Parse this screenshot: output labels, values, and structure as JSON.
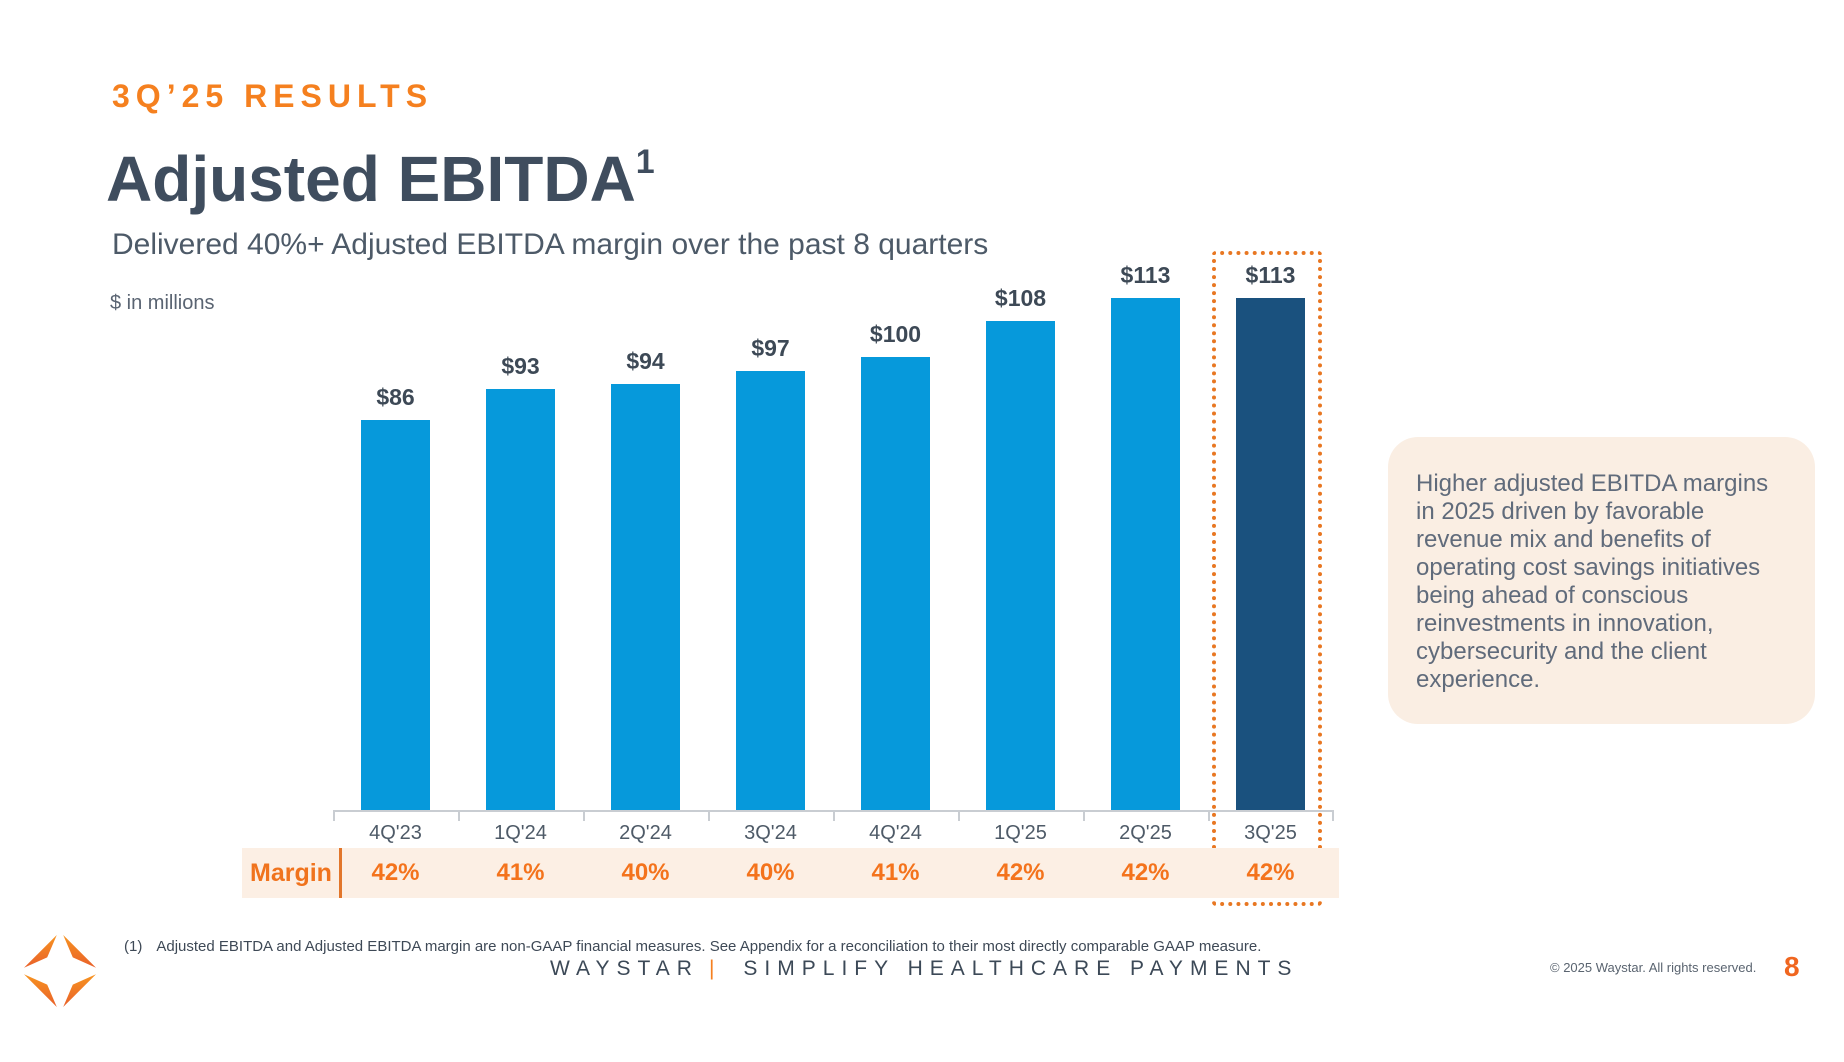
{
  "slide": {
    "eyebrow": "3Q’25 RESULTS",
    "title": "Adjusted EBITDA",
    "title_superscript": "1",
    "subtitle": "Delivered 40%+ Adjusted EBITDA margin over the past 8 quarters",
    "units_label": "$ in millions"
  },
  "chart_data": {
    "type": "bar",
    "title": "Adjusted EBITDA",
    "xlabel": "",
    "ylabel": "$ in millions",
    "categories": [
      "4Q'23",
      "1Q'24",
      "2Q'24",
      "3Q'24",
      "4Q'24",
      "1Q'25",
      "2Q'25",
      "3Q'25"
    ],
    "values": [
      86,
      93,
      94,
      97,
      100,
      108,
      113,
      113
    ],
    "value_labels": [
      "$86",
      "$93",
      "$94",
      "$97",
      "$100",
      "$108",
      "$113",
      "$113"
    ],
    "highlight_index": 7,
    "ylim": [
      0,
      126
    ],
    "grid": false,
    "legend": false,
    "margin_row": {
      "label": "Margin",
      "values": [
        "42%",
        "41%",
        "40%",
        "40%",
        "41%",
        "42%",
        "42%",
        "42%"
      ]
    },
    "colors": {
      "bar": "#0699DB",
      "highlight_bar": "#1A517E",
      "accent_orange": "#F5801F",
      "margin_band_bg": "#FCEFE4",
      "highlight_border": "#E87722"
    }
  },
  "callout": {
    "text": "Higher adjusted EBITDA margins in 2025 driven by favorable revenue mix and benefits of operating cost savings initiatives being ahead of conscious reinvestments in innovation, cybersecurity and the client experience."
  },
  "footer": {
    "footnote_marker": "(1)",
    "footnote": "Adjusted EBITDA and Adjusted EBITDA margin are non-GAAP financial measures. See Appendix for a reconciliation to their most directly comparable GAAP measure.",
    "brand": "WAYSTAR",
    "divider": "|",
    "tagline": "SIMPLIFY HEALTHCARE PAYMENTS",
    "copyright": "© 2025 Waystar. All rights reserved.",
    "page_number": "8"
  }
}
